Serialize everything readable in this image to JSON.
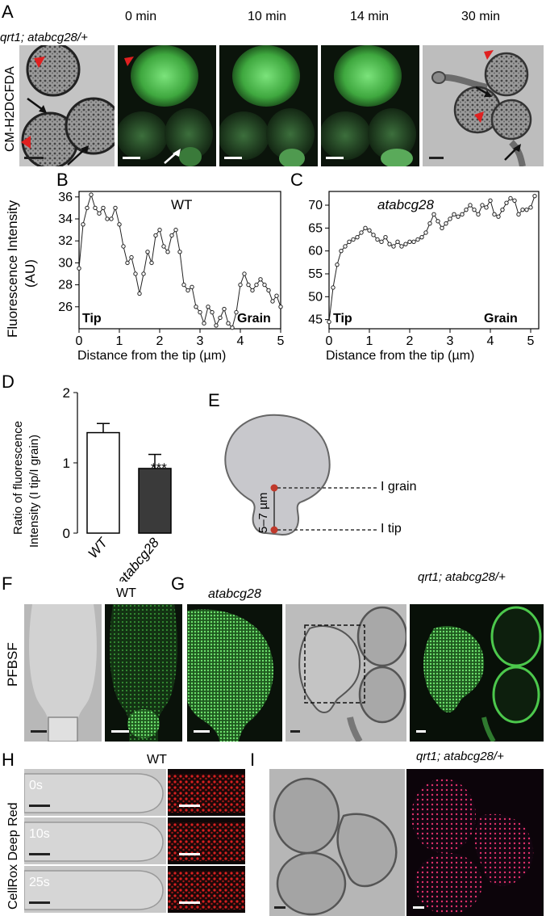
{
  "panelA": {
    "label": "A",
    "genotype": "qrt1; atabcg28/+",
    "times": [
      "0 min",
      "10 min",
      "14 min",
      "30 min"
    ],
    "ylabel": "CM-H2DCFDA"
  },
  "panelB": {
    "label": "B",
    "title": "WT",
    "tip": "Tip",
    "grain": "Grain"
  },
  "panelC": {
    "label": "C",
    "title": "atabcg28",
    "tip": "Tip",
    "grain": "Grain"
  },
  "sharedY": {
    "line1": "Fluorescence Intensity",
    "line2": "(AU)"
  },
  "sharedX": "Distance from the tip (µm)",
  "panelD": {
    "label": "D",
    "ylabel1": "Ratio of fluorescence",
    "ylabel2": "Intensity (I tip/I grain)",
    "significance": "***"
  },
  "panelE": {
    "label": "E",
    "distance": "5–7 µm",
    "igrain": "I grain",
    "itip": "I tip"
  },
  "panelF": {
    "label": "F",
    "title": "WT",
    "ylabel": "PFBSF"
  },
  "panelG": {
    "label": "G",
    "title1": "atabcg28",
    "title2": "qrt1; atabcg28/+"
  },
  "panelH": {
    "label": "H",
    "title": "WT",
    "ylabel": "CellRox Deep Red",
    "times": [
      "0s",
      "10s",
      "25s"
    ]
  },
  "panelI": {
    "label": "I",
    "title": "qrt1; atabcg28/+"
  },
  "colors": {
    "green": "#5fd35f",
    "red": "#e02020",
    "magenta": "#e0306a",
    "cell": "#c8c8cc",
    "dot": "#c0392b"
  },
  "chart_data": [
    {
      "type": "line",
      "title": "WT",
      "xlabel": "Distance from the tip (µm)",
      "ylabel": "Fluorescence Intensity (AU)",
      "xlim": [
        0,
        5
      ],
      "ylim": [
        24,
        36.5
      ],
      "xticks": [
        0,
        1,
        2,
        3,
        4,
        5
      ],
      "yticks": [
        26,
        28,
        30,
        32,
        34,
        36
      ],
      "x": [
        0,
        0.1,
        0.2,
        0.3,
        0.4,
        0.5,
        0.6,
        0.7,
        0.8,
        0.9,
        1.0,
        1.1,
        1.2,
        1.3,
        1.4,
        1.5,
        1.6,
        1.7,
        1.8,
        1.9,
        2.0,
        2.1,
        2.2,
        2.3,
        2.4,
        2.5,
        2.6,
        2.7,
        2.8,
        2.9,
        3.0,
        3.1,
        3.2,
        3.3,
        3.4,
        3.5,
        3.6,
        3.7,
        3.8,
        3.9,
        4.0,
        4.1,
        4.2,
        4.3,
        4.4,
        4.5,
        4.6,
        4.7,
        4.8,
        4.9,
        5.0
      ],
      "y": [
        29.5,
        33.5,
        35,
        36.2,
        35,
        34.5,
        35,
        34,
        34,
        35,
        33.5,
        31.5,
        30,
        30.5,
        29,
        27.2,
        29,
        31,
        30,
        32.5,
        33,
        31.5,
        31,
        32.5,
        33,
        31,
        28,
        27.5,
        27.8,
        26,
        25.5,
        24.5,
        26,
        25.5,
        24.3,
        25,
        25.8,
        24.5,
        24.1,
        25.5,
        28,
        29,
        28,
        27.5,
        28,
        28.5,
        28,
        27.5,
        26.5,
        27,
        26
      ]
    },
    {
      "type": "line",
      "title": "atabcg28",
      "xlabel": "Distance from the tip (µm)",
      "ylabel": "",
      "xlim": [
        0,
        5.2
      ],
      "ylim": [
        43,
        73
      ],
      "xticks": [
        0,
        1,
        2,
        3,
        4,
        5
      ],
      "yticks": [
        45,
        50,
        55,
        60,
        65,
        70
      ],
      "x": [
        0,
        0.1,
        0.2,
        0.3,
        0.4,
        0.5,
        0.6,
        0.7,
        0.8,
        0.9,
        1.0,
        1.1,
        1.2,
        1.3,
        1.4,
        1.5,
        1.6,
        1.7,
        1.8,
        1.9,
        2.0,
        2.1,
        2.2,
        2.3,
        2.4,
        2.5,
        2.6,
        2.7,
        2.8,
        2.9,
        3.0,
        3.1,
        3.2,
        3.3,
        3.4,
        3.5,
        3.6,
        3.7,
        3.8,
        3.9,
        4.0,
        4.1,
        4.2,
        4.3,
        4.4,
        4.5,
        4.6,
        4.7,
        4.8,
        4.9,
        5.0,
        5.1
      ],
      "y": [
        44.5,
        52,
        57,
        60,
        61,
        62,
        62.5,
        63,
        64,
        65,
        64.5,
        63.5,
        62.5,
        62,
        63,
        61.5,
        61,
        62,
        61,
        61.5,
        62,
        62,
        62.5,
        63,
        64,
        66,
        68,
        66.5,
        65,
        66,
        67,
        68,
        67.5,
        68,
        69,
        70,
        69,
        68,
        70,
        69.5,
        71,
        68,
        67.5,
        69,
        70.5,
        71.5,
        71,
        68,
        69,
        69,
        69.5,
        72
      ]
    },
    {
      "type": "bar",
      "categories": [
        "WT",
        "atabcg28"
      ],
      "values": [
        1.43,
        0.92
      ],
      "errors": [
        0.13,
        0.2
      ],
      "ylabel": "Ratio of fluorescence Intensity (I tip/I grain)",
      "ylim": [
        0,
        2
      ],
      "yticks": [
        0,
        1,
        2
      ],
      "colors": [
        "#ffffff",
        "#3a3a3a"
      ]
    }
  ]
}
